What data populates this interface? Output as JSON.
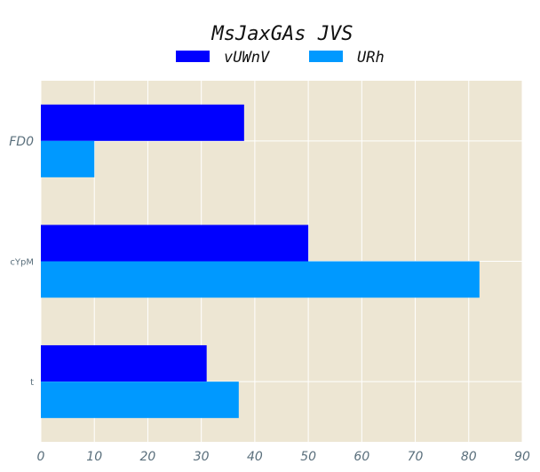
{
  "chart_data": {
    "type": "bar",
    "orientation": "horizontal",
    "title": "MsJaxGAs JVS",
    "categories": [
      "FD0",
      "cYpM",
      "t"
    ],
    "series": [
      {
        "name": "vUWnV",
        "values": [
          38,
          50,
          31
        ],
        "color": "#0000ff"
      },
      {
        "name": "URh",
        "values": [
          10,
          82,
          37
        ],
        "color": "#0099ff"
      }
    ],
    "xlim": [
      0,
      90
    ],
    "xticks": [
      0,
      10,
      20,
      30,
      40,
      50,
      60,
      70,
      80,
      90
    ],
    "xlabel": "",
    "ylabel": "",
    "grid": true,
    "legend": "top-center",
    "background_color": "#ede6d3"
  }
}
